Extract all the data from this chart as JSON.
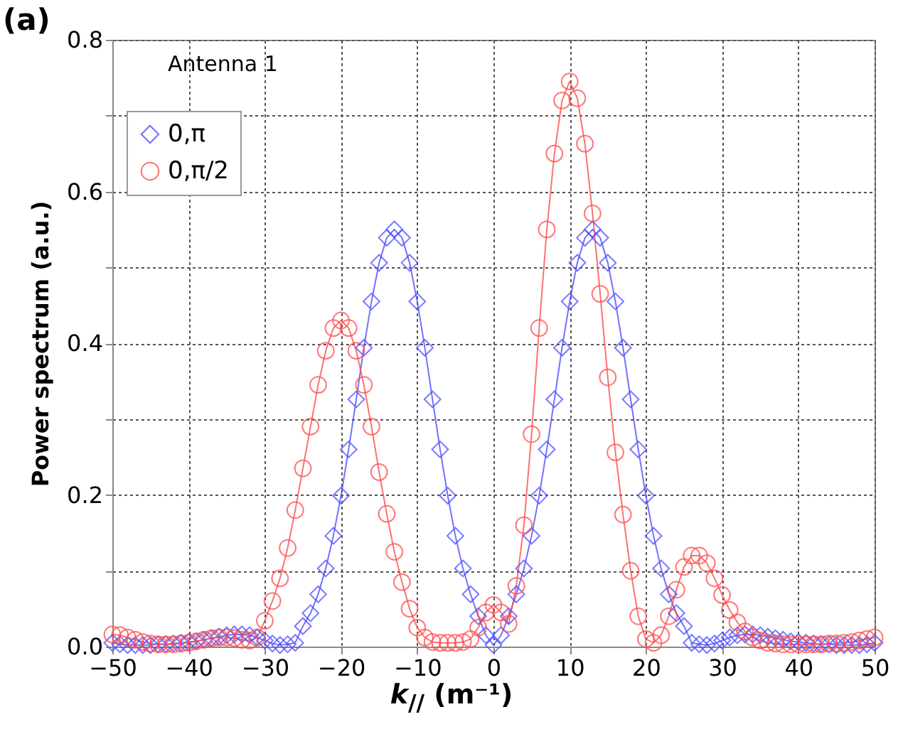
{
  "chart_data": {
    "type": "line",
    "xlabel": "k$_{//}$ (m⁻¹)",
    "ylabel": "Power spectrum (a.u.)",
    "annotations": [
      "(a)",
      "Antenna 1"
    ],
    "x": [
      -50,
      -49,
      -48,
      -47,
      -46,
      -45,
      -44,
      -43,
      -42,
      -41,
      -40,
      -39,
      -38,
      -37,
      -36,
      -35,
      -34,
      -33,
      -32,
      -31,
      -30,
      -29,
      -28,
      -27,
      -26,
      -25,
      -24,
      -23,
      -22,
      -21,
      -20,
      -19,
      -18,
      -17,
      -16,
      -15,
      -14,
      -13,
      -12,
      -11,
      -10,
      -9,
      -8,
      -7,
      -6,
      -5,
      -4,
      -3,
      -2,
      -1,
      0,
      1,
      2,
      3,
      4,
      5,
      6,
      7,
      8,
      9,
      10,
      11,
      12,
      13,
      14,
      15,
      16,
      17,
      18,
      19,
      20,
      21,
      22,
      23,
      24,
      25,
      26,
      27,
      28,
      29,
      30,
      31,
      32,
      33,
      34,
      35,
      36,
      37,
      38,
      39,
      40,
      41,
      42,
      43,
      44,
      45,
      46,
      47,
      48,
      49,
      50
    ],
    "series": [
      {
        "name": "0,π",
        "color": "#4d4dff",
        "marker": "diamond",
        "values": [
          0.005,
          0.003,
          0.002,
          0.002,
          0.002,
          0.002,
          0.003,
          0.003,
          0.004,
          0.005,
          0.006,
          0.007,
          0.009,
          0.011,
          0.013,
          0.015,
          0.016,
          0.016,
          0.015,
          0.012,
          0.008,
          0.004,
          0.002,
          0.003,
          0.005,
          0.027,
          0.044,
          0.069,
          0.103,
          0.146,
          0.199,
          0.26,
          0.326,
          0.394,
          0.455,
          0.506,
          0.539,
          0.55,
          0.539,
          0.506,
          0.455,
          0.394,
          0.326,
          0.26,
          0.199,
          0.146,
          0.103,
          0.069,
          0.04,
          0.015,
          0.002,
          0.015,
          0.04,
          0.069,
          0.103,
          0.146,
          0.199,
          0.26,
          0.326,
          0.394,
          0.455,
          0.506,
          0.539,
          0.55,
          0.539,
          0.506,
          0.455,
          0.394,
          0.326,
          0.26,
          0.199,
          0.146,
          0.103,
          0.069,
          0.044,
          0.027,
          0.005,
          0.003,
          0.002,
          0.004,
          0.008,
          0.012,
          0.015,
          0.016,
          0.016,
          0.015,
          0.013,
          0.011,
          0.009,
          0.007,
          0.006,
          0.005,
          0.004,
          0.003,
          0.003,
          0.002,
          0.002,
          0.002,
          0.002,
          0.003,
          0.005
        ]
      },
      {
        "name": "0,π/2",
        "color": "#ff4d4d",
        "marker": "circle",
        "values": [
          0.016,
          0.015,
          0.012,
          0.009,
          0.006,
          0.004,
          0.003,
          0.003,
          0.003,
          0.004,
          0.005,
          0.007,
          0.009,
          0.011,
          0.012,
          0.012,
          0.011,
          0.009,
          0.008,
          0.012,
          0.034,
          0.06,
          0.09,
          0.13,
          0.18,
          0.235,
          0.29,
          0.345,
          0.39,
          0.42,
          0.43,
          0.42,
          0.39,
          0.345,
          0.29,
          0.23,
          0.175,
          0.125,
          0.085,
          0.05,
          0.025,
          0.012,
          0.006,
          0.005,
          0.005,
          0.005,
          0.006,
          0.01,
          0.025,
          0.045,
          0.055,
          0.045,
          0.03,
          0.08,
          0.16,
          0.28,
          0.42,
          0.55,
          0.65,
          0.72,
          0.745,
          0.723,
          0.663,
          0.571,
          0.465,
          0.355,
          0.256,
          0.174,
          0.1,
          0.04,
          0.01,
          0.005,
          0.015,
          0.04,
          0.075,
          0.105,
          0.12,
          0.12,
          0.11,
          0.09,
          0.068,
          0.048,
          0.032,
          0.02,
          0.012,
          0.008,
          0.005,
          0.004,
          0.003,
          0.003,
          0.003,
          0.003,
          0.003,
          0.003,
          0.004,
          0.004,
          0.005,
          0.006,
          0.008,
          0.01,
          0.012
        ]
      }
    ],
    "xlim": [
      -50,
      50
    ],
    "xticks": [
      -50,
      -40,
      -30,
      -20,
      -10,
      0,
      10,
      20,
      30,
      40,
      50
    ],
    "ylim": [
      0,
      0.8
    ],
    "yticks": [
      {
        "value": 0,
        "label": "0.0"
      },
      {
        "value": 0.1,
        "label": null
      },
      {
        "value": 0.2,
        "label": "0.2"
      },
      {
        "value": 0.3,
        "label": null
      },
      {
        "value": 0.4,
        "label": "0.4"
      },
      {
        "value": 0.5,
        "label": null
      },
      {
        "value": 0.6,
        "label": "0.6"
      },
      {
        "value": 0.7,
        "label": null
      },
      {
        "value": 0.8,
        "label": "0.8"
      }
    ],
    "grid": true,
    "legend": "top left",
    "line_style": "solid"
  }
}
